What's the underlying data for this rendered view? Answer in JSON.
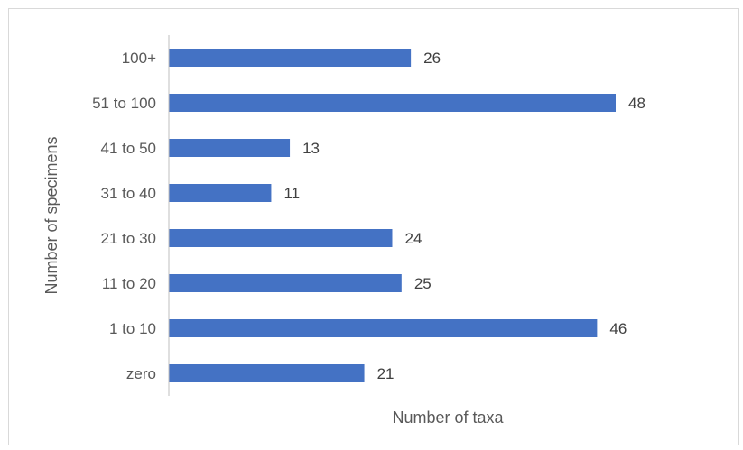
{
  "chart_data": {
    "type": "bar",
    "orientation": "horizontal",
    "categories": [
      "zero",
      "1 to 10",
      "11 to 20",
      "21 to 30",
      "31 to 40",
      "41 to 50",
      "51 to 100",
      "100+"
    ],
    "values": [
      21,
      46,
      25,
      24,
      11,
      13,
      48,
      26
    ],
    "xlabel": "Number of taxa",
    "ylabel": "Number of specimens",
    "xlim": [
      0,
      50
    ],
    "grid": false,
    "legend": "none",
    "data_labels": true,
    "bar_color": "#4472c4",
    "axis_color": "#bfbfbf"
  }
}
